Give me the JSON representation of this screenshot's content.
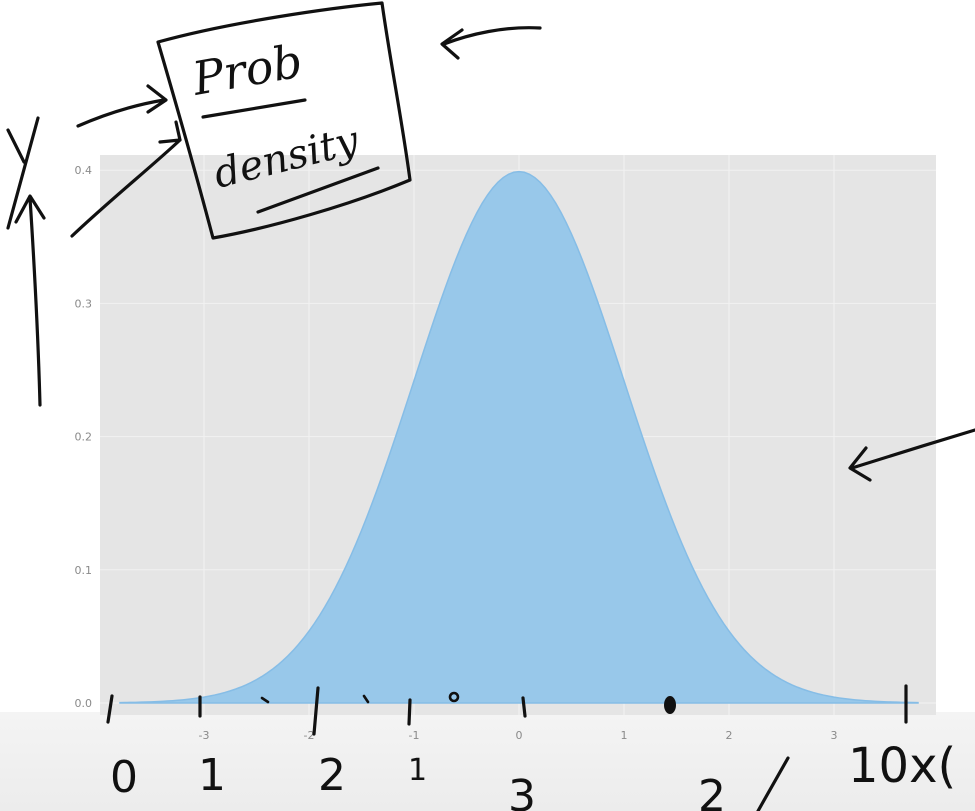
{
  "chart_data": {
    "type": "area",
    "title": "",
    "xlabel": "",
    "ylabel": "",
    "xlim": [
      -3.8,
      3.8
    ],
    "ylim": [
      0,
      0.4
    ],
    "x_ticks": [
      -3,
      -2,
      -1,
      0,
      1,
      2,
      3
    ],
    "x_tick_labels": [
      "-3",
      "-2",
      "-1",
      "0",
      "1",
      "2",
      "3"
    ],
    "y_ticks": [
      0.0,
      0.1,
      0.2,
      0.3,
      0.4
    ],
    "y_tick_labels": [
      "0.0",
      "0.1",
      "0.2",
      "0.3",
      "0.4"
    ],
    "grid": true,
    "series": [
      {
        "x": [
          -3.8,
          -3.5,
          -3.0,
          -2.5,
          -2.0,
          -1.5,
          -1.0,
          -0.5,
          0.0,
          0.5,
          1.0,
          1.5,
          2.0,
          2.5,
          3.0,
          3.5,
          3.8
        ],
        "y": [
          0.0003,
          0.0009,
          0.0044,
          0.0175,
          0.054,
          0.1295,
          0.242,
          0.3521,
          0.3989,
          0.3521,
          0.242,
          0.1295,
          0.054,
          0.0175,
          0.0044,
          0.0009,
          0.0003
        ]
      }
    ],
    "colors": {
      "fill": "#98c8ea",
      "stroke": "#86bde6",
      "background": "#e5e5e5",
      "grid": "#f2f2f2"
    }
  },
  "annotations": {
    "box_text_line1": "Prob",
    "box_text_line2": "density",
    "left_axis_letter": "y",
    "bottom_numbers": [
      "0",
      "1",
      "2",
      "1",
      "3",
      "2"
    ],
    "right_text": "10x("
  }
}
